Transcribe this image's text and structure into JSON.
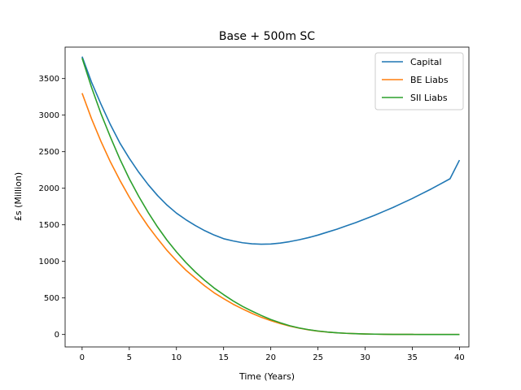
{
  "chart_data": {
    "type": "line",
    "title": "Base + 500m SC",
    "xlabel": "Time (Years)",
    "ylabel": "£s (Million)",
    "xlim": [
      -1.8,
      41.0
    ],
    "ylim": [
      -170,
      3930
    ],
    "xticks": [
      0,
      5,
      10,
      15,
      20,
      25,
      30,
      35,
      40
    ],
    "yticks": [
      0,
      500,
      1000,
      1500,
      2000,
      2500,
      3000,
      3500
    ],
    "grid": false,
    "legend_position": "top-right",
    "x": [
      0,
      1,
      2,
      3,
      4,
      5,
      6,
      7,
      8,
      9,
      10,
      11,
      12,
      13,
      14,
      15,
      16,
      17,
      18,
      19,
      20,
      21,
      22,
      23,
      24,
      25,
      26,
      27,
      28,
      29,
      30,
      31,
      32,
      33,
      34,
      35,
      36,
      37,
      38,
      39,
      40
    ],
    "series": [
      {
        "name": "Capital",
        "color": "#1f77b4",
        "values": [
          3800,
          3450,
          3150,
          2870,
          2620,
          2410,
          2220,
          2050,
          1900,
          1770,
          1660,
          1570,
          1490,
          1420,
          1360,
          1310,
          1280,
          1255,
          1240,
          1235,
          1238,
          1250,
          1270,
          1295,
          1325,
          1360,
          1400,
          1440,
          1485,
          1530,
          1580,
          1630,
          1685,
          1740,
          1800,
          1860,
          1925,
          1990,
          2060,
          2130,
          2385
        ]
      },
      {
        "name": "BE Liabs",
        "color": "#ff7f0e",
        "values": [
          3300,
          2950,
          2640,
          2360,
          2110,
          1880,
          1670,
          1480,
          1310,
          1150,
          1010,
          880,
          770,
          665,
          570,
          490,
          415,
          350,
          290,
          235,
          190,
          150,
          115,
          87,
          64,
          46,
          33,
          23,
          16,
          11,
          7,
          5,
          3,
          2,
          1,
          1,
          0,
          0,
          0,
          0,
          0
        ]
      },
      {
        "name": "SII Liabs",
        "color": "#2ca02c",
        "values": [
          3780,
          3380,
          3020,
          2700,
          2400,
          2130,
          1890,
          1670,
          1470,
          1290,
          1130,
          985,
          855,
          740,
          635,
          545,
          460,
          385,
          320,
          260,
          205,
          160,
          120,
          90,
          66,
          48,
          34,
          24,
          16,
          11,
          7,
          5,
          3,
          2,
          1,
          1,
          0,
          0,
          0,
          0,
          0
        ]
      }
    ]
  }
}
